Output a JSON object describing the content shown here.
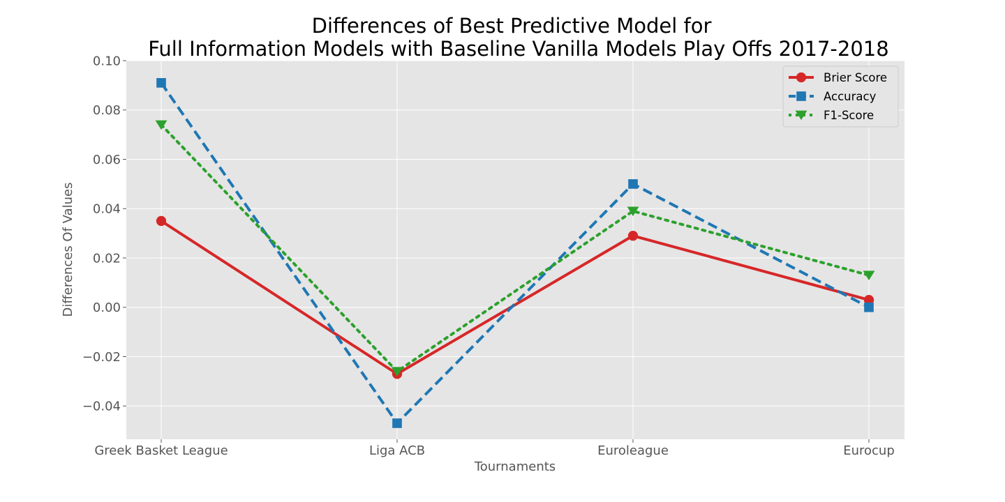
{
  "chart_data": {
    "type": "line",
    "title_lines": [
      "Differences of Best Predictive Model for",
      "Full Information Models  with Baseline Vanilla Models Play Offs 2017-2018"
    ],
    "xlabel": "Tournaments",
    "ylabel": "Differences Of Values",
    "categories": [
      "Greek Basket League",
      "Liga ACB",
      "Euroleague",
      "Eurocup"
    ],
    "ylim": [
      -0.0535,
      0.1
    ],
    "yticks": [
      -0.04,
      -0.02,
      0.0,
      0.02,
      0.04,
      0.06,
      0.08,
      0.1
    ],
    "ytick_labels": [
      "−0.04",
      "−0.02",
      "0.00",
      "0.02",
      "0.04",
      "0.06",
      "0.08",
      "0.10"
    ],
    "grid": true,
    "legend_position": "top-right",
    "series": [
      {
        "name": "Brier Score",
        "values": [
          0.035,
          -0.027,
          0.029,
          0.003
        ],
        "color": "#d62728",
        "marker": "circle",
        "linestyle": "solid"
      },
      {
        "name": "Accuracy",
        "values": [
          0.091,
          -0.047,
          0.05,
          0.0
        ],
        "color": "#1f77b4",
        "marker": "square",
        "linestyle": "dashed"
      },
      {
        "name": "F1-Score",
        "values": [
          0.074,
          -0.026,
          0.039,
          0.013
        ],
        "color": "#2ca02c",
        "marker": "triangle-down",
        "linestyle": "dotted"
      }
    ]
  }
}
